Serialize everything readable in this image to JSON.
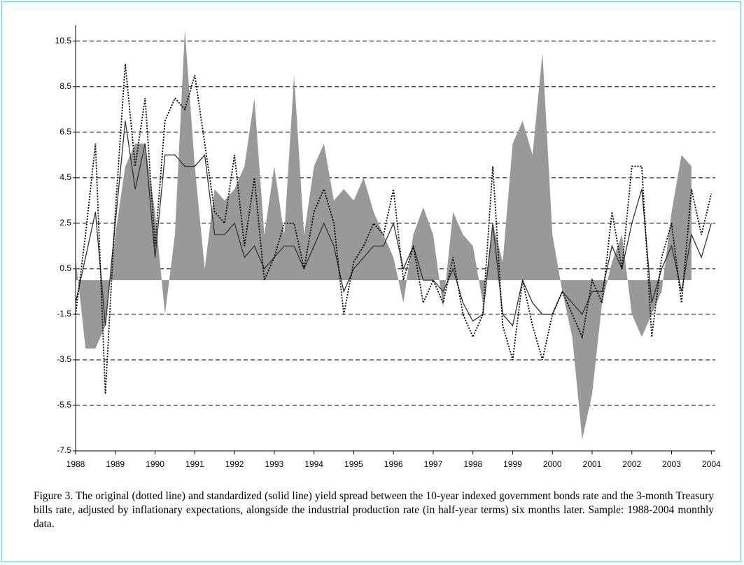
{
  "chart_data": {
    "type": "area-line",
    "caption": "Figure 3. The original (dotted line) and standardized (solid line) yield spread between the 10-year indexed government bonds rate and the 3-month Treasury bills rate, adjusted by inflationary expectations, alongside the industrial production rate (in half-year terms) six months later. Sample: 1988-2004 monthly data.",
    "x": [
      1988,
      1988.25,
      1988.5,
      1988.75,
      1989,
      1989.25,
      1989.5,
      1989.75,
      1990,
      1990.25,
      1990.5,
      1990.75,
      1991,
      1991.25,
      1991.5,
      1991.75,
      1992,
      1992.25,
      1992.5,
      1992.75,
      1993,
      1993.25,
      1993.5,
      1993.75,
      1994,
      1994.25,
      1994.5,
      1994.75,
      1995,
      1995.25,
      1995.5,
      1995.75,
      1996,
      1996.25,
      1996.5,
      1996.75,
      1997,
      1997.25,
      1997.5,
      1997.75,
      1998,
      1998.25,
      1998.5,
      1998.75,
      1999,
      1999.25,
      1999.5,
      1999.75,
      2000,
      2000.25,
      2000.5,
      2000.75,
      2001,
      2001.25,
      2001.5,
      2001.75,
      2002,
      2002.25,
      2002.5,
      2002.75,
      2003,
      2003.25,
      2003.5,
      2003.75,
      2004
    ],
    "series": [
      {
        "type": "area",
        "color": "#999999",
        "values": [
          1,
          -3,
          -3,
          -2,
          2,
          5,
          6,
          6,
          3,
          -1.5,
          2,
          11,
          5,
          0.5,
          4,
          3.5,
          4,
          5,
          8,
          2,
          5,
          2,
          9,
          2,
          5,
          6,
          3.5,
          4,
          3.5,
          4.5,
          3,
          2,
          1,
          -1,
          2,
          3.2,
          2,
          -1.2,
          3,
          2,
          1.5,
          -1,
          2.5,
          0.8,
          6,
          7,
          5.5,
          10,
          2,
          -0.5,
          -2.5,
          -7,
          -5,
          -1,
          0.8,
          2,
          -1.5,
          -2.5,
          -1.5,
          -0.5,
          3,
          5.5,
          5,
          null,
          null
        ]
      },
      {
        "type": "line",
        "style": "solid",
        "color": "#333333",
        "values": [
          -1,
          1,
          3,
          -2,
          2.5,
          7,
          4,
          6,
          1,
          5.5,
          5.5,
          5,
          5,
          5.5,
          2,
          2,
          2.5,
          1,
          1.5,
          0.5,
          1,
          1.5,
          1.5,
          0.5,
          1.5,
          2.5,
          1.5,
          -0.5,
          0.5,
          1,
          1.5,
          1.5,
          2.5,
          0.5,
          1.5,
          0,
          0,
          -0.5,
          0.5,
          -1,
          -1.8,
          -1.5,
          2.5,
          -1.5,
          -2,
          0,
          -1,
          -1.5,
          -1.5,
          -0.5,
          -1,
          -1.5,
          -0.5,
          -0.5,
          1.5,
          0.5,
          2.5,
          4,
          -1,
          0.5,
          1.5,
          -0.5,
          2,
          1,
          2.5
        ]
      },
      {
        "type": "line",
        "style": "dotted",
        "color": "#000000",
        "values": [
          -1.5,
          2,
          6,
          -5,
          3,
          9.5,
          5,
          8,
          1.5,
          7,
          8,
          7.5,
          9,
          6,
          3,
          2.5,
          5.5,
          1.5,
          4.5,
          0,
          1,
          2.5,
          2.5,
          0.5,
          3,
          4,
          2.5,
          -1.5,
          0.8,
          1.5,
          2.5,
          2,
          4,
          0,
          1.5,
          -1,
          0,
          -1,
          1,
          -1.5,
          -2.5,
          -1.5,
          5,
          -2,
          -3.5,
          0,
          -2,
          -3.5,
          -1.5,
          -0.5,
          -1.5,
          -2.5,
          0,
          -1,
          3,
          0.5,
          5,
          5,
          -2.5,
          1,
          2.5,
          -1,
          4,
          2,
          3.8
        ]
      }
    ],
    "xlim": [
      1988,
      2004.1
    ],
    "xticks": [
      1988,
      1989,
      1990,
      1991,
      1992,
      1993,
      1994,
      1995,
      1996,
      1997,
      1998,
      1999,
      2000,
      2001,
      2002,
      2003,
      2004
    ],
    "ylim": [
      -7.5,
      11.2
    ],
    "yticks": [
      -7.5,
      -5.5,
      -3.5,
      -1.5,
      0.5,
      2.5,
      4.5,
      6.5,
      8.5,
      10.5
    ],
    "grid": true
  }
}
